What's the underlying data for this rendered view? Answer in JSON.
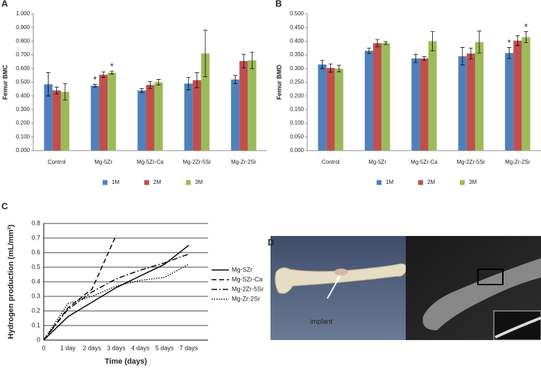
{
  "chart_data": [
    {
      "type": "bar",
      "panel_label": "A",
      "ylabel": "Femur BMC",
      "categories": [
        "Control",
        "Mg-5Zr",
        "Mg-5Zr-Ca",
        "Mg-2Zr-5Sr",
        "Mg-Zr-2Sr"
      ],
      "series": [
        {
          "name": "1M",
          "color": "#4f81bd",
          "values": [
            0.485,
            0.475,
            0.44,
            0.49,
            0.52
          ],
          "errors": [
            0.085,
            0.01,
            0.015,
            0.045,
            0.03
          ],
          "significance": [
            null,
            "*",
            null,
            null,
            null
          ]
        },
        {
          "name": "2M",
          "color": "#c0504d",
          "values": [
            0.44,
            0.555,
            0.48,
            0.515,
            0.655
          ],
          "errors": [
            0.025,
            0.02,
            0.025,
            0.055,
            0.05
          ],
          "significance": [
            null,
            null,
            null,
            null,
            null
          ]
        },
        {
          "name": "3M",
          "color": "#9bbb59",
          "values": [
            0.43,
            0.57,
            0.5,
            0.71,
            0.66
          ],
          "errors": [
            0.06,
            0.01,
            0.02,
            0.17,
            0.06
          ],
          "significance": [
            null,
            "*",
            null,
            null,
            null
          ]
        }
      ],
      "ylim": [
        0,
        1
      ],
      "yticks": [
        {
          "value": 0,
          "label": "0.000"
        },
        {
          "value": 0.1,
          "label": "0.100"
        },
        {
          "value": 0.2,
          "label": "0.200"
        },
        {
          "value": 0.3,
          "label": "0.300"
        },
        {
          "value": 0.4,
          "label": "0.400"
        },
        {
          "value": 0.5,
          "label": "0.500"
        },
        {
          "value": 0.6,
          "label": "0.600"
        },
        {
          "value": 0.7,
          "label": "0.700"
        },
        {
          "value": 0.8,
          "label": "0.800"
        },
        {
          "value": 0.9,
          "label": "0.900"
        },
        {
          "value": 1,
          "label": "1.000"
        }
      ],
      "grid": false,
      "legend": "bottom"
    },
    {
      "type": "bar",
      "panel_label": "B",
      "ylabel": "Femur BMD",
      "categories": [
        "Control",
        "Mg-5Zr",
        "Mg-5Zr-Ca",
        "Mg-2Zr-5Sr",
        "Mg-Zr-2Sr"
      ],
      "series": [
        {
          "name": "1M",
          "color": "#4f81bd",
          "values": [
            0.315,
            0.365,
            0.337,
            0.345,
            0.357
          ],
          "errors": [
            0.015,
            0.01,
            0.015,
            0.032,
            0.02
          ],
          "significance": [
            null,
            null,
            null,
            null,
            "*"
          ]
        },
        {
          "name": "2M",
          "color": "#c0504d",
          "values": [
            0.302,
            0.393,
            0.337,
            0.355,
            0.402
          ],
          "errors": [
            0.015,
            0.013,
            0.007,
            0.02,
            0.018
          ],
          "significance": [
            null,
            null,
            null,
            null,
            null
          ]
        },
        {
          "name": "3M",
          "color": "#9bbb59",
          "values": [
            0.3,
            0.393,
            0.4,
            0.397,
            0.415
          ],
          "errors": [
            0.012,
            0.005,
            0.035,
            0.04,
            0.02
          ],
          "significance": [
            null,
            null,
            null,
            null,
            "*"
          ]
        }
      ],
      "ylim": [
        0,
        0.5
      ],
      "yticks": [
        {
          "value": 0,
          "label": "0.000"
        },
        {
          "value": 0.05,
          "label": "0.050"
        },
        {
          "value": 0.1,
          "label": "0.100"
        },
        {
          "value": 0.15,
          "label": "0.150"
        },
        {
          "value": 0.2,
          "label": "0.200"
        },
        {
          "value": 0.25,
          "label": "0.250"
        },
        {
          "value": 0.3,
          "label": "0.300"
        },
        {
          "value": 0.35,
          "label": "0.350"
        },
        {
          "value": 0.4,
          "label": "0.400"
        },
        {
          "value": 0.45,
          "label": "0.450"
        },
        {
          "value": 0.5,
          "label": "0.500"
        }
      ],
      "grid": false,
      "legend": "bottom"
    },
    {
      "type": "line",
      "panel_label": "C",
      "ylabel": "Hydrogen production (mL/mm²)",
      "xlabel": "Time (days)",
      "categories": [
        "0",
        "1 day",
        "2 days",
        "3 days",
        "4 days",
        "5 days",
        "7 days"
      ],
      "series": [
        {
          "name": "Mg-SZr",
          "color": "#000000",
          "style": "solid",
          "values": [
            0,
            0.16,
            0.26,
            0.36,
            0.44,
            0.52,
            0.65
          ]
        },
        {
          "name": "Mg-SZr-Ca",
          "color": "#000000",
          "style": "dashed",
          "values": [
            0,
            0.22,
            0.35,
            0.72,
            null,
            null,
            null
          ]
        },
        {
          "name": "Mg-2Zr-5Sr",
          "color": "#000000",
          "style": "dashdot",
          "values": [
            0,
            0.21,
            0.33,
            0.42,
            0.48,
            0.53,
            0.59
          ]
        },
        {
          "name": "Mg-Zr-2Sr",
          "color": "#000000",
          "style": "dotted",
          "values": [
            0,
            0.25,
            0.3,
            0.37,
            0.41,
            0.43,
            0.52
          ]
        }
      ],
      "ylim": [
        0,
        0.8
      ],
      "yticks": [
        0,
        0.1,
        0.2,
        0.3,
        0.4,
        0.5,
        0.6,
        0.7,
        0.8
      ],
      "grid": true,
      "legend": "right"
    }
  ],
  "panel_d": {
    "panel_label": "D",
    "annotation": "implant"
  }
}
